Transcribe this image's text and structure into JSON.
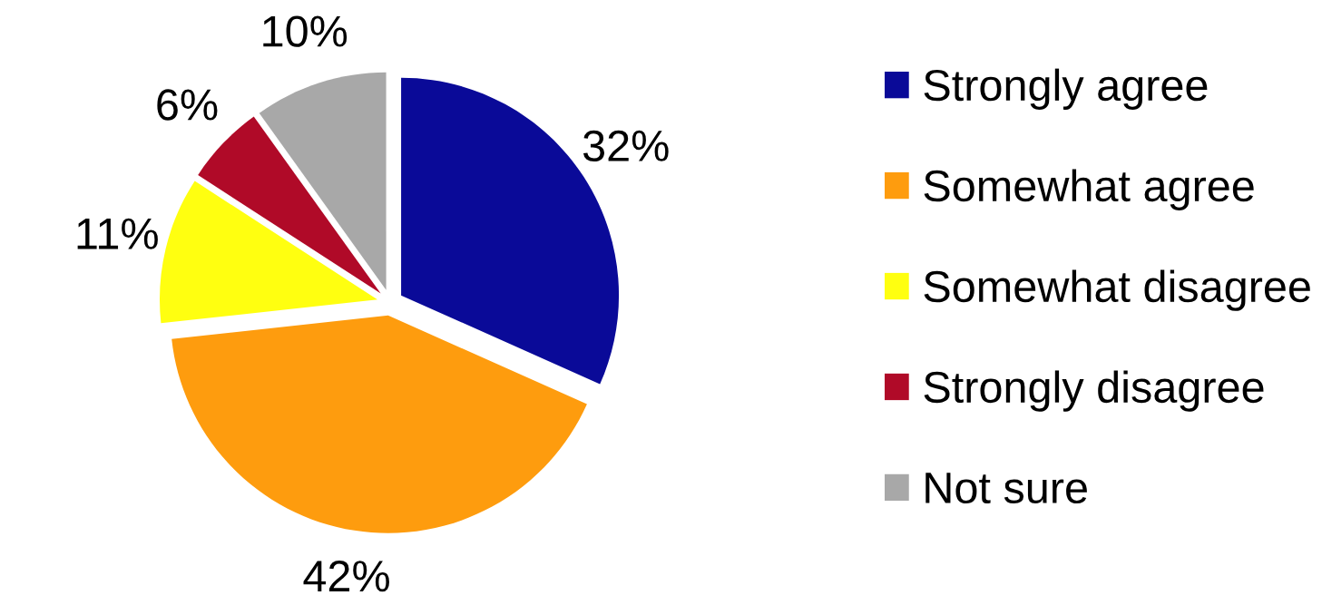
{
  "chart_data": {
    "type": "pie",
    "categories": [
      "Strongly agree",
      "Somewhat agree",
      "Somewhat disagree",
      "Strongly disagree",
      "Not sure"
    ],
    "values": [
      32,
      42,
      11,
      6,
      10
    ],
    "colors": [
      "#0a0a98",
      "#fe9c0e",
      "#ffff10",
      "#b00a28",
      "#a8a8a8"
    ],
    "value_labels": [
      "32%",
      "42%",
      "11%",
      "6%",
      "10%"
    ],
    "legend": "right"
  }
}
